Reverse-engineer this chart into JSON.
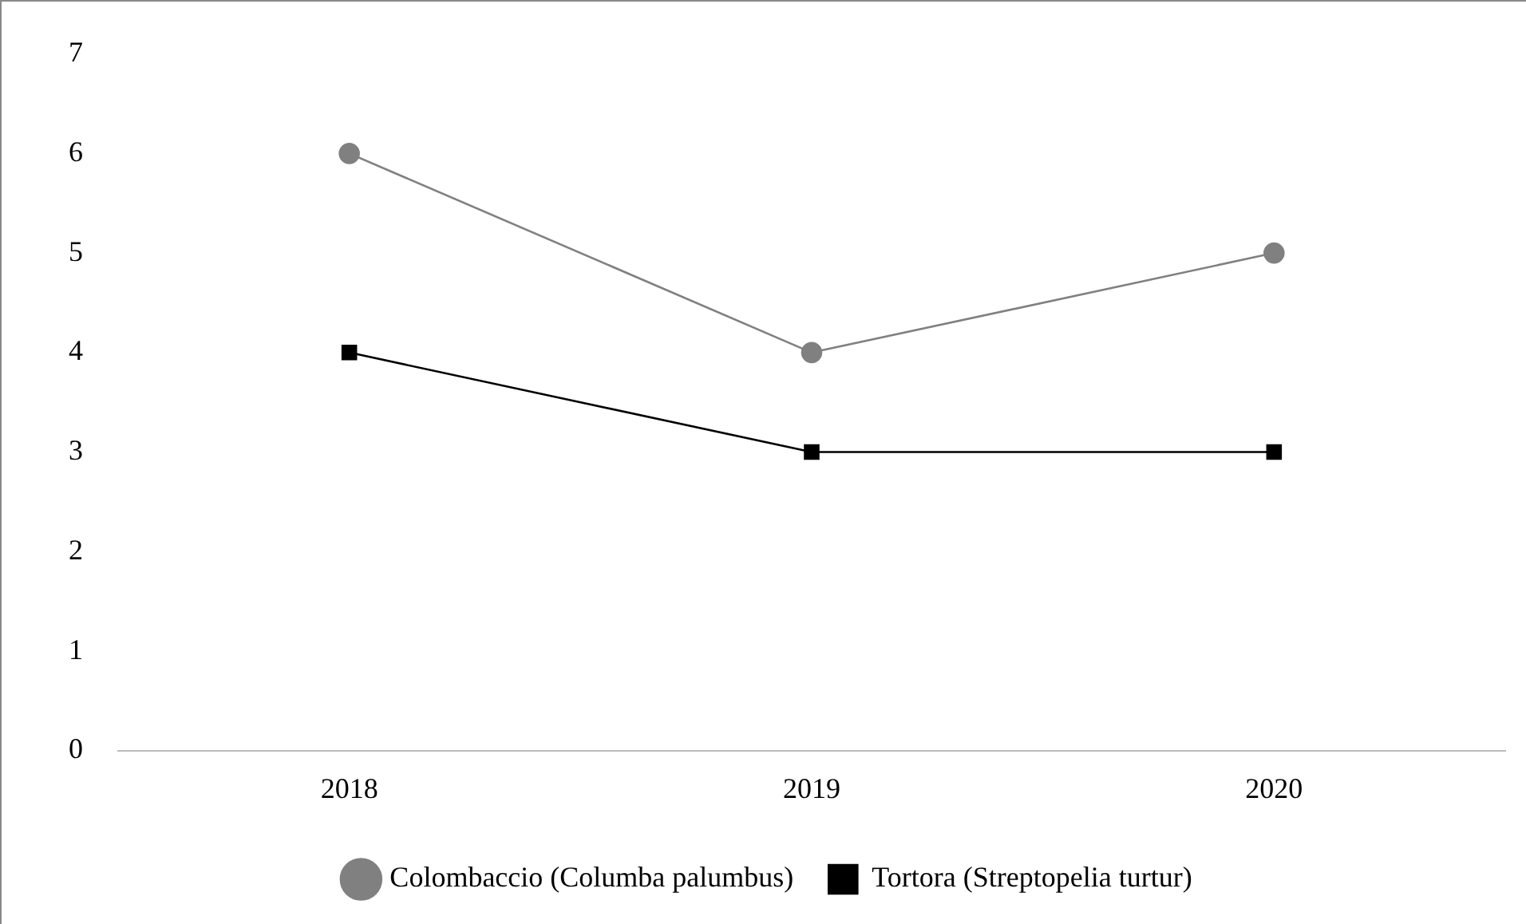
{
  "chart_data": {
    "type": "line",
    "categories": [
      "2018",
      "2019",
      "2020"
    ],
    "series": [
      {
        "name": "Colombaccio (Columba palumbus)",
        "color": "#808080",
        "marker": "circle",
        "values": [
          6,
          4,
          5
        ]
      },
      {
        "name": "Tortora (Streptopelia turtur)",
        "color": "#000000",
        "marker": "square",
        "values": [
          4,
          3,
          3
        ]
      }
    ],
    "ylim": [
      0,
      7
    ],
    "yticks": [
      0,
      1,
      2,
      3,
      4,
      5,
      6,
      7
    ],
    "grid": false,
    "legend": "bottom",
    "line_style": "solid"
  }
}
